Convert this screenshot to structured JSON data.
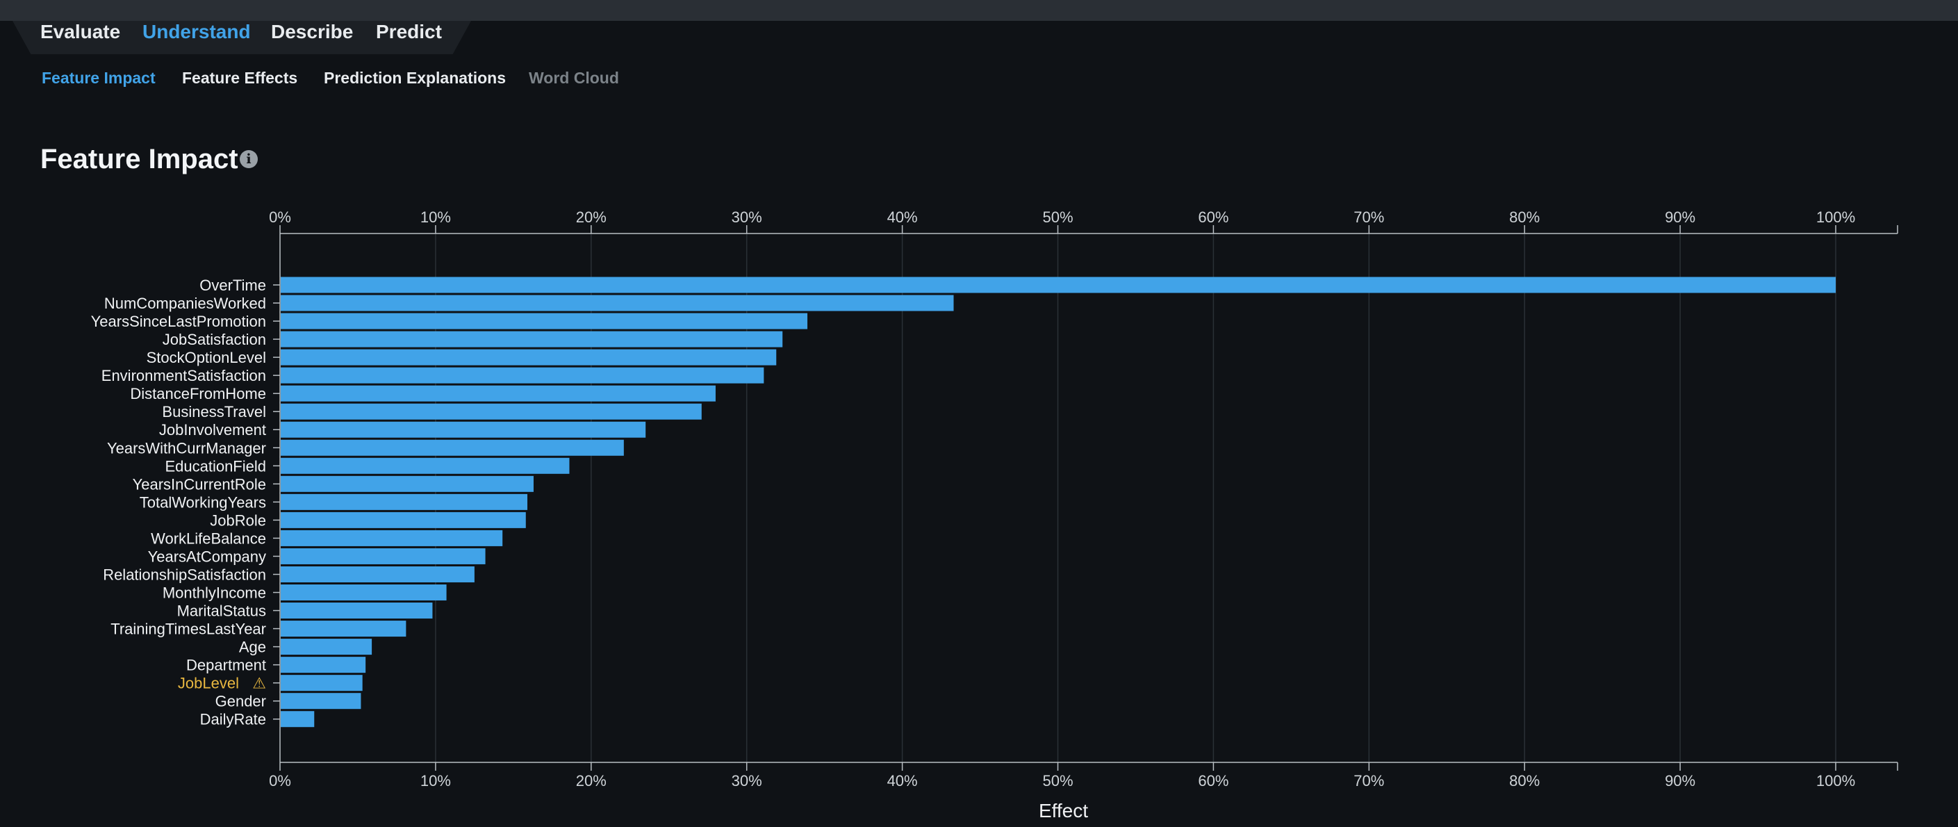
{
  "main_tabs": [
    {
      "label": "Evaluate",
      "active": false
    },
    {
      "label": "Understand",
      "active": true
    },
    {
      "label": "Describe",
      "active": false
    },
    {
      "label": "Predict",
      "active": false
    }
  ],
  "sub_tabs": [
    {
      "label": "Feature Impact",
      "state": "active"
    },
    {
      "label": "Feature Effects",
      "state": "normal"
    },
    {
      "label": "Prediction Explanations",
      "state": "normal"
    },
    {
      "label": "Word Cloud",
      "state": "disabled"
    }
  ],
  "page": {
    "title": "Feature Impact",
    "info_icon": "info-icon"
  },
  "colors": {
    "bar": "#41a3e8",
    "accent": "#41a3e8",
    "warning": "#e8b740",
    "background": "#0f1216"
  },
  "chart_data": {
    "type": "bar",
    "orientation": "horizontal",
    "title": "",
    "xlabel": "Effect",
    "ylabel": "",
    "xlim": [
      0,
      100
    ],
    "x_ticks": [
      "0%",
      "10%",
      "20%",
      "30%",
      "40%",
      "50%",
      "60%",
      "70%",
      "80%",
      "90%",
      "100%"
    ],
    "x_axis_positions": [
      "top",
      "bottom"
    ],
    "grid": true,
    "categories": [
      "OverTime",
      "NumCompaniesWorked",
      "YearsSinceLastPromotion",
      "JobSatisfaction",
      "StockOptionLevel",
      "EnvironmentSatisfaction",
      "DistanceFromHome",
      "BusinessTravel",
      "JobInvolvement",
      "YearsWithCurrManager",
      "EducationField",
      "YearsInCurrentRole",
      "TotalWorkingYears",
      "JobRole",
      "WorkLifeBalance",
      "YearsAtCompany",
      "RelationshipSatisfaction",
      "MonthlyIncome",
      "MaritalStatus",
      "TrainingTimesLastYear",
      "Age",
      "Department",
      "JobLevel",
      "Gender",
      "DailyRate"
    ],
    "values": [
      100,
      43.3,
      33.9,
      32.3,
      31.9,
      31.1,
      28.0,
      27.1,
      23.5,
      22.1,
      18.6,
      16.3,
      15.9,
      15.8,
      14.3,
      13.2,
      12.5,
      10.7,
      9.8,
      8.1,
      5.9,
      5.5,
      5.3,
      5.2,
      2.2
    ],
    "warnings": [
      "JobLevel"
    ],
    "warning_icon": "warning-triangle-icon"
  }
}
